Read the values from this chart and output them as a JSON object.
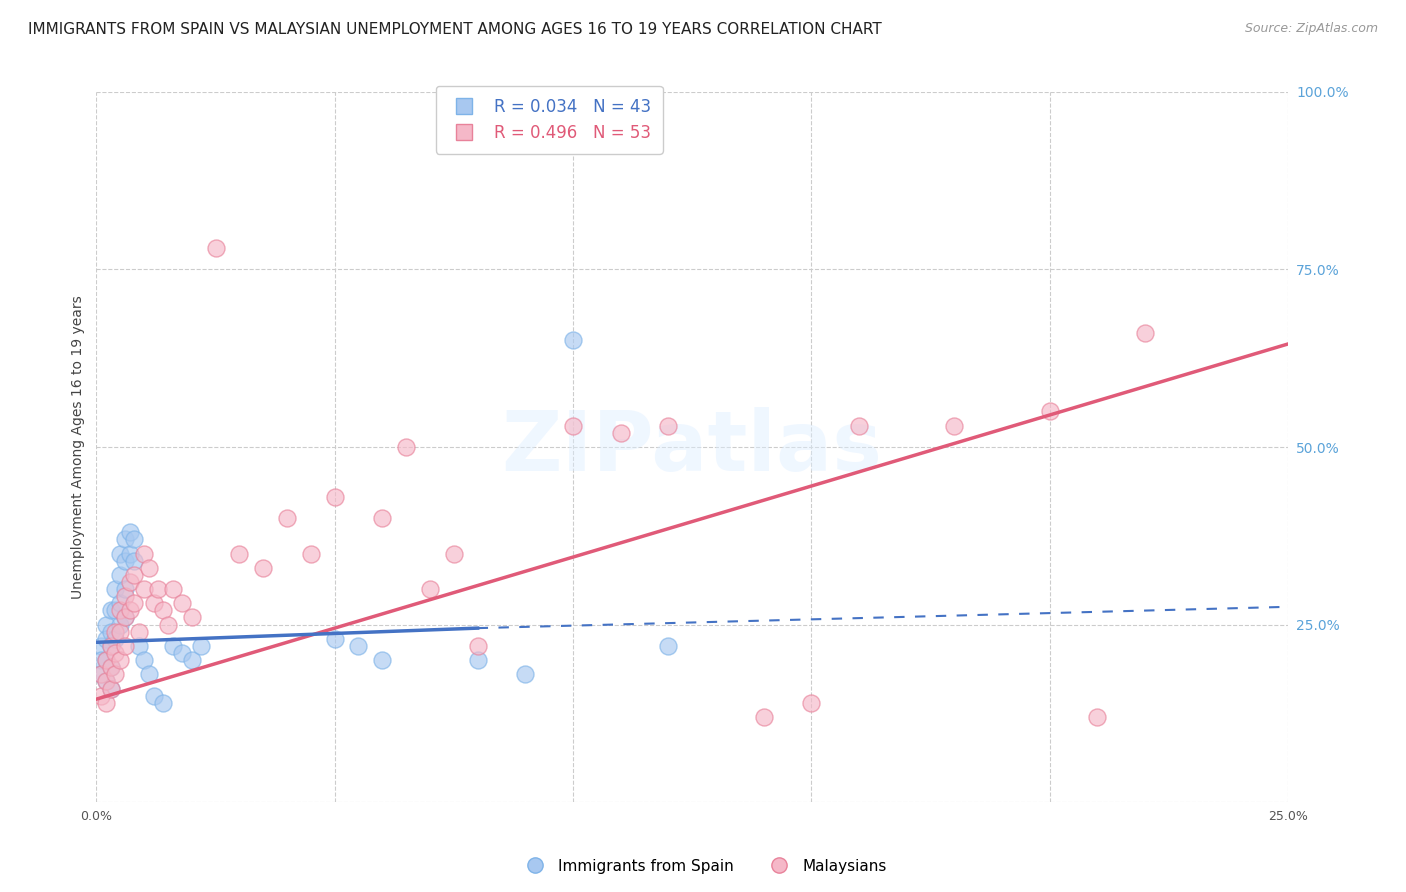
{
  "title": "IMMIGRANTS FROM SPAIN VS MALAYSIAN UNEMPLOYMENT AMONG AGES 16 TO 19 YEARS CORRELATION CHART",
  "source": "Source: ZipAtlas.com",
  "ylabel": "Unemployment Among Ages 16 to 19 years",
  "xlim": [
    0.0,
    0.25
  ],
  "ylim": [
    0.0,
    1.0
  ],
  "x_ticks": [
    0.0,
    0.05,
    0.1,
    0.15,
    0.2,
    0.25
  ],
  "x_tick_labels_show": [
    "0.0%",
    "25.0%"
  ],
  "x_tick_vals_show": [
    0.0,
    0.25
  ],
  "y_ticks_right": [
    0.0,
    0.25,
    0.5,
    0.75,
    1.0
  ],
  "y_tick_labels_right": [
    "",
    "25.0%",
    "50.0%",
    "75.0%",
    "100.0%"
  ],
  "series_blue": {
    "color": "#a8c8f0",
    "edge_color": "#7eb3e8",
    "line_color": "#4472c4",
    "line_solid_end": 0.08,
    "x": [
      0.001,
      0.001,
      0.001,
      0.002,
      0.002,
      0.002,
      0.002,
      0.003,
      0.003,
      0.003,
      0.003,
      0.003,
      0.004,
      0.004,
      0.004,
      0.005,
      0.005,
      0.005,
      0.005,
      0.006,
      0.006,
      0.006,
      0.006,
      0.007,
      0.007,
      0.008,
      0.008,
      0.009,
      0.01,
      0.011,
      0.012,
      0.014,
      0.016,
      0.018,
      0.02,
      0.022,
      0.05,
      0.055,
      0.06,
      0.08,
      0.09,
      0.1,
      0.12
    ],
    "y": [
      0.22,
      0.2,
      0.18,
      0.25,
      0.23,
      0.2,
      0.17,
      0.27,
      0.24,
      0.22,
      0.19,
      0.16,
      0.3,
      0.27,
      0.23,
      0.35,
      0.32,
      0.28,
      0.25,
      0.37,
      0.34,
      0.3,
      0.26,
      0.38,
      0.35,
      0.37,
      0.34,
      0.22,
      0.2,
      0.18,
      0.15,
      0.14,
      0.22,
      0.21,
      0.2,
      0.22,
      0.23,
      0.22,
      0.2,
      0.2,
      0.18,
      0.65,
      0.22
    ]
  },
  "series_pink": {
    "color": "#f5b8c8",
    "edge_color": "#e8829a",
    "line_color": "#e05a78",
    "x": [
      0.001,
      0.001,
      0.002,
      0.002,
      0.002,
      0.003,
      0.003,
      0.003,
      0.004,
      0.004,
      0.004,
      0.005,
      0.005,
      0.005,
      0.006,
      0.006,
      0.006,
      0.007,
      0.007,
      0.008,
      0.008,
      0.009,
      0.01,
      0.01,
      0.011,
      0.012,
      0.013,
      0.014,
      0.015,
      0.016,
      0.018,
      0.02,
      0.025,
      0.03,
      0.035,
      0.04,
      0.045,
      0.05,
      0.06,
      0.065,
      0.07,
      0.075,
      0.08,
      0.1,
      0.11,
      0.12,
      0.14,
      0.15,
      0.16,
      0.18,
      0.2,
      0.21,
      0.22
    ],
    "y": [
      0.18,
      0.15,
      0.2,
      0.17,
      0.14,
      0.22,
      0.19,
      0.16,
      0.24,
      0.21,
      0.18,
      0.27,
      0.24,
      0.2,
      0.29,
      0.26,
      0.22,
      0.31,
      0.27,
      0.32,
      0.28,
      0.24,
      0.35,
      0.3,
      0.33,
      0.28,
      0.3,
      0.27,
      0.25,
      0.3,
      0.28,
      0.26,
      0.78,
      0.35,
      0.33,
      0.4,
      0.35,
      0.43,
      0.4,
      0.5,
      0.3,
      0.35,
      0.22,
      0.53,
      0.52,
      0.53,
      0.12,
      0.14,
      0.53,
      0.53,
      0.55,
      0.12,
      0.66
    ]
  },
  "blue_line": {
    "x0": 0.0,
    "y0": 0.225,
    "x1": 0.08,
    "y1": 0.245,
    "x1_dashed": 0.25,
    "y1_dashed": 0.275
  },
  "pink_line": {
    "x0": 0.0,
    "y0": 0.145,
    "x1": 0.25,
    "y1": 0.645
  },
  "watermark": "ZIPatlas",
  "title_fontsize": 11,
  "source_fontsize": 9,
  "label_fontsize": 10,
  "tick_fontsize": 9,
  "legend_blue_text": "R = 0.034   N = 43",
  "legend_pink_text": "R = 0.496   N = 53",
  "legend_blue_color": "#4472c4",
  "legend_pink_color": "#e05a78"
}
